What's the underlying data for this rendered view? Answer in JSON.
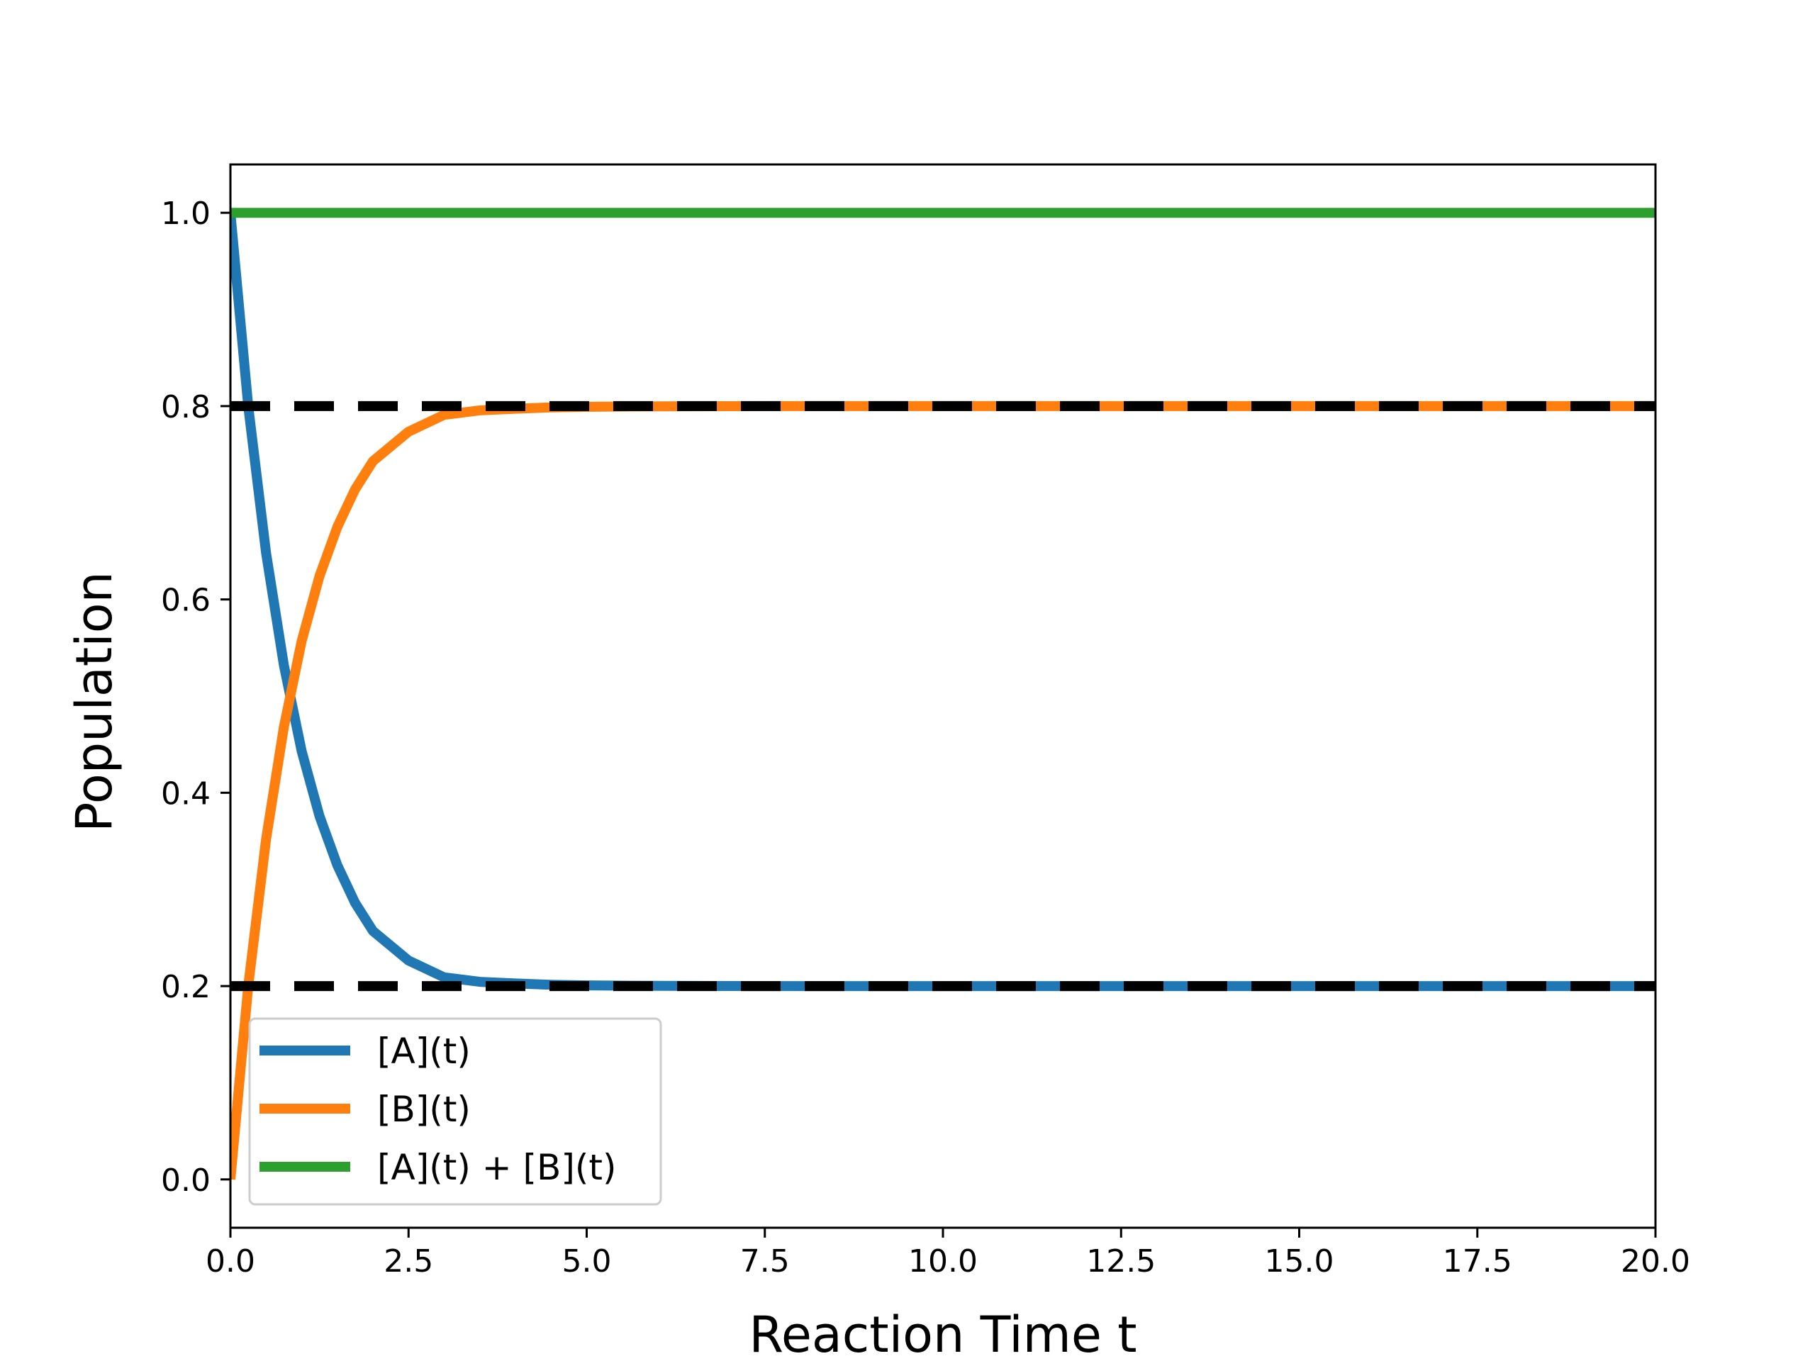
{
  "chart_data": {
    "type": "line",
    "title": "",
    "xlabel": "Reaction Time t",
    "ylabel": "Population",
    "xlim": [
      0,
      20
    ],
    "ylim": [
      -0.05,
      1.05
    ],
    "xticks": [
      0,
      2.5,
      5,
      7.5,
      10,
      12.5,
      15,
      17.5,
      20
    ],
    "xtick_labels": [
      "0.0",
      "2.5",
      "5.0",
      "7.5",
      "10.0",
      "12.5",
      "15.0",
      "17.5",
      "20.0"
    ],
    "yticks": [
      0,
      0.2,
      0.4,
      0.6,
      0.8,
      1.0
    ],
    "ytick_labels": [
      "0.0",
      "0.2",
      "0.4",
      "0.6",
      "0.8",
      "1.0"
    ],
    "grid": false,
    "legend_position": "lower-left",
    "series": [
      {
        "name": "[A](t)",
        "color": "#1f77b4",
        "x": [
          0,
          0.25,
          0.5,
          0.75,
          1,
          1.25,
          1.5,
          1.75,
          2,
          2.5,
          3,
          3.5,
          4,
          4.5,
          5,
          5.5,
          6,
          7,
          8,
          10,
          12,
          14,
          16,
          18,
          20
        ],
        "y": [
          1.0,
          0.8,
          0.648,
          0.532,
          0.443,
          0.376,
          0.325,
          0.286,
          0.257,
          0.2264,
          0.209,
          0.2044,
          0.2027,
          0.2013,
          0.2007,
          0.2004,
          0.2002,
          0.2001,
          0.2,
          0.2,
          0.2,
          0.2,
          0.2,
          0.2,
          0.2
        ]
      },
      {
        "name": "[B](t)",
        "color": "#ff7f0e",
        "x": [
          0,
          0.25,
          0.5,
          0.75,
          1,
          1.25,
          1.5,
          1.75,
          2,
          2.5,
          3,
          3.5,
          4,
          4.5,
          5,
          5.5,
          6,
          7,
          8,
          10,
          12,
          14,
          16,
          18,
          20
        ],
        "y": [
          0.0,
          0.2,
          0.352,
          0.468,
          0.557,
          0.624,
          0.675,
          0.714,
          0.743,
          0.7736,
          0.791,
          0.7956,
          0.7973,
          0.7987,
          0.7993,
          0.7996,
          0.7998,
          0.7999,
          0.8,
          0.8,
          0.8,
          0.8,
          0.8,
          0.8,
          0.8
        ]
      },
      {
        "name": "[A](t) + [B](t)",
        "color": "#2ca02c",
        "x": [
          0,
          20
        ],
        "y": [
          1.0,
          1.0
        ]
      }
    ],
    "reference_lines": [
      {
        "y": 0.8,
        "color": "#000000",
        "style": "dashed"
      },
      {
        "y": 0.2,
        "color": "#000000",
        "style": "dashed"
      }
    ]
  }
}
